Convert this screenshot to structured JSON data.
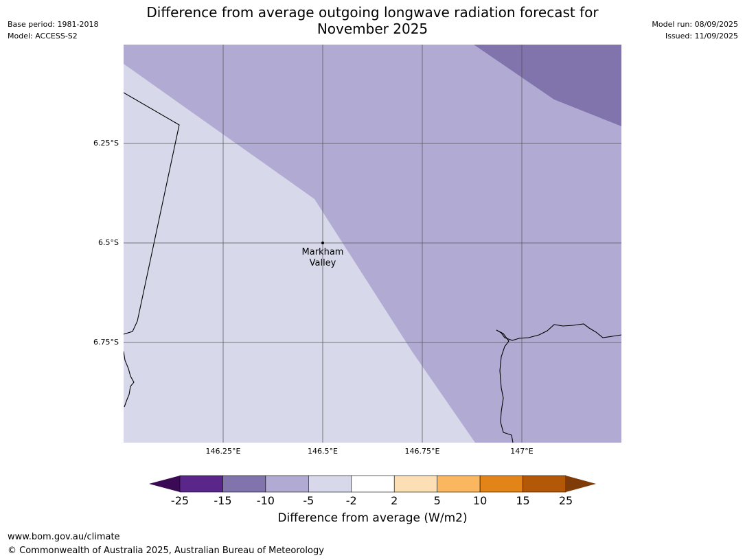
{
  "header": {
    "title_line1": "Difference from average outgoing longwave radiation forecast for",
    "title_line2": "November 2025",
    "base_period": "Base period: 1981-2018",
    "model": "Model: ACCESS-S2",
    "model_run": "Model run: 08/09/2025",
    "issued": "Issued: 11/09/2025"
  },
  "map": {
    "lat_labels": [
      "6.25°S",
      "6.5°S",
      "6.75°S"
    ],
    "lon_labels": [
      "146.25°E",
      "146.5°E",
      "146.75°E",
      "147°E"
    ],
    "place": {
      "name_line1": "Markham",
      "name_line2": "Valley",
      "lat": -6.5,
      "lon": 146.5
    },
    "regions": [
      {
        "category": "-2 to -5",
        "color": "#d7d8ea"
      },
      {
        "category": "-5 to -10",
        "color": "#b1abd3"
      },
      {
        "category": "-10 to -15",
        "color": "#8174ac"
      }
    ]
  },
  "colorbar": {
    "ticks": [
      "-25",
      "-15",
      "-10",
      "-5",
      "-2",
      "2",
      "5",
      "10",
      "15",
      "25"
    ],
    "colors": [
      "#5a2689",
      "#8174ac",
      "#b1abd3",
      "#d7d8ea",
      "#ffffff",
      "#fddfb5",
      "#fbb75f",
      "#e28417",
      "#b25807"
    ],
    "extend_low_color": "#3b0a55",
    "extend_high_color": "#7f3b08",
    "label": "Difference from average (W/m2)"
  },
  "footer": {
    "url": "www.bom.gov.au/climate",
    "copyright": "© Commonwealth of Australia 2025, Australian Bureau of Meteorology"
  }
}
